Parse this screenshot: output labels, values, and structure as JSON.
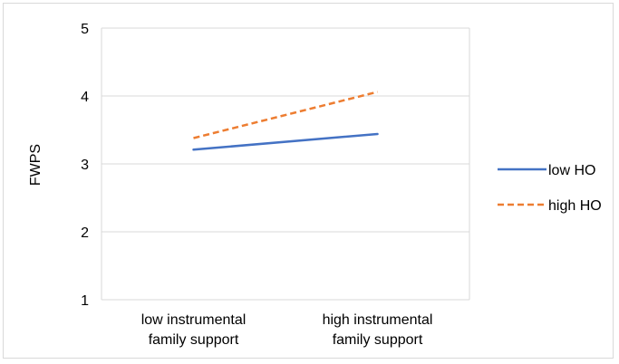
{
  "chart_data": {
    "type": "line",
    "title": "",
    "xlabel": "",
    "ylabel": "FWPS",
    "ylim": [
      1,
      5
    ],
    "yticks": [
      "1",
      "2",
      "3",
      "4",
      "5"
    ],
    "categories": [
      [
        "low instrumental",
        "family support"
      ],
      [
        "high instrumental",
        "family support"
      ]
    ],
    "grid": true,
    "legend_position": "right",
    "series": [
      {
        "name": "low HO",
        "values": [
          3.21,
          3.44
        ],
        "color": "#4472c4",
        "dash": "solid"
      },
      {
        "name": "high HO",
        "values": [
          3.38,
          4.06
        ],
        "color": "#ed7d31",
        "dash": "dashed"
      }
    ]
  }
}
